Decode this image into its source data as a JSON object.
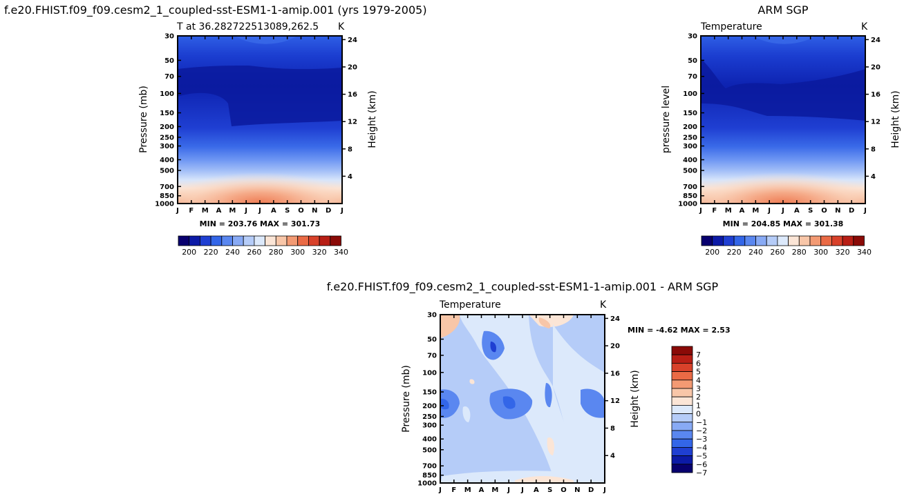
{
  "chart_data": [
    {
      "type": "heatmap",
      "panel": "model",
      "title": "f.e20.FHIST.f09_f09.cesm2_1_coupled-sst-ESM1-1-amip.001 (yrs 1979-2005)",
      "subtitle": "T at 36.282722513089,262.5",
      "units": "K",
      "ylabel": "Pressure (mb)",
      "ylabel_right": "Height (km)",
      "x_ticks": [
        "J",
        "F",
        "M",
        "A",
        "M",
        "J",
        "J",
        "A",
        "S",
        "O",
        "N",
        "D",
        "J"
      ],
      "y_ticks": [
        "30",
        "50",
        "70",
        "100",
        "150",
        "200",
        "250",
        "300",
        "400",
        "500",
        "700",
        "850",
        "1000"
      ],
      "y_ticks_right": [
        "24",
        "20",
        "16",
        "12",
        "8",
        "4"
      ],
      "stats": "MIN = 203.76  MAX = 301.73",
      "min": 203.76,
      "max": 301.73,
      "colorbar_labels": [
        "200",
        "220",
        "240",
        "260",
        "280",
        "300",
        "320",
        "340"
      ]
    },
    {
      "type": "heatmap",
      "panel": "observation",
      "title": "ARM SGP",
      "subtitle": "Temperature",
      "units": "K",
      "ylabel": "pressure level",
      "ylabel_right": "Height (km)",
      "x_ticks": [
        "J",
        "F",
        "M",
        "A",
        "M",
        "J",
        "J",
        "A",
        "S",
        "O",
        "N",
        "D",
        "J"
      ],
      "y_ticks": [
        "30",
        "50",
        "70",
        "100",
        "150",
        "200",
        "250",
        "300",
        "400",
        "500",
        "700",
        "850",
        "1000"
      ],
      "y_ticks_right": [
        "24",
        "20",
        "16",
        "12",
        "8",
        "4"
      ],
      "stats": "MIN = 204.85  MAX = 301.38",
      "min": 204.85,
      "max": 301.38,
      "colorbar_labels": [
        "200",
        "220",
        "240",
        "260",
        "280",
        "300",
        "320",
        "340"
      ]
    },
    {
      "type": "heatmap",
      "panel": "difference",
      "title": "f.e20.FHIST.f09_f09.cesm2_1_coupled-sst-ESM1-1-amip.001 - ARM SGP",
      "subtitle": "Temperature",
      "units": "K",
      "ylabel": "Pressure (mb)",
      "ylabel_right": "Height (km)",
      "x_ticks": [
        "J",
        "F",
        "M",
        "A",
        "M",
        "J",
        "J",
        "A",
        "S",
        "O",
        "N",
        "D",
        "J"
      ],
      "y_ticks": [
        "30",
        "50",
        "70",
        "100",
        "150",
        "200",
        "250",
        "300",
        "400",
        "500",
        "700",
        "850",
        "1000"
      ],
      "y_ticks_right": [
        "24",
        "20",
        "16",
        "12",
        "8",
        "4"
      ],
      "stats": "MIN =   -4.62  MAX =    2.53",
      "min": -4.62,
      "max": 2.53,
      "colorbar_labels": [
        "7",
        "6",
        "5",
        "4",
        "3",
        "2",
        "1",
        "0",
        "-1",
        "-2",
        "-3",
        "-4",
        "-5",
        "-6",
        "-7"
      ]
    }
  ],
  "colors": {
    "temp_scale": [
      "#08006e",
      "#0c1aa6",
      "#1f3fd2",
      "#3366e8",
      "#5a87f0",
      "#88aaf5",
      "#b5ccf8",
      "#dce9fb",
      "#fbe5d6",
      "#f8c6a8",
      "#f39a73",
      "#ea6a45",
      "#d8412a",
      "#b81e15",
      "#8a0a07"
    ],
    "diff_scale": [
      "#8a0a07",
      "#b81e15",
      "#d8412a",
      "#ea6a45",
      "#f39a73",
      "#f8c6a8",
      "#fbe5d6",
      "#dce9fb",
      "#b5ccf8",
      "#88aaf5",
      "#5a87f0",
      "#3366e8",
      "#1f3fd2",
      "#0c1aa6",
      "#08006e"
    ]
  }
}
